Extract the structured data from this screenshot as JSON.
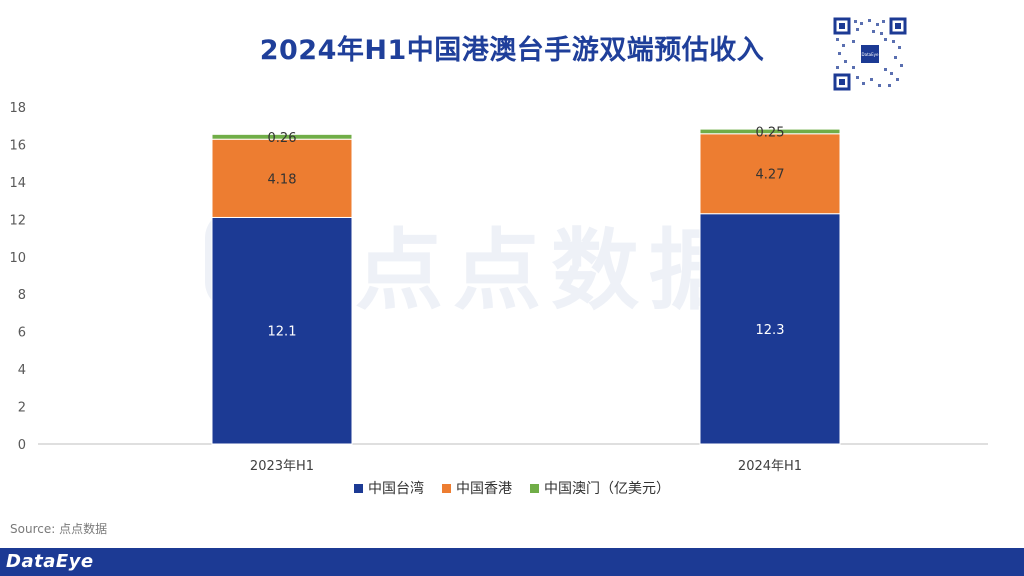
{
  "title": "2024年H1中国港澳台手游双端预估收入",
  "qr_icon_label": "DataEye",
  "watermark": "点点数据",
  "source": "Source: 点点数据",
  "brand": "DataEye",
  "colors": {
    "taiwan": "#1c3a94",
    "hongkong": "#ed7d31",
    "macau": "#70ad47",
    "title": "#1f3f9a",
    "footer": "#1c3a94"
  },
  "chart_data": {
    "type": "bar",
    "stacked": true,
    "categories": [
      "2023年H1",
      "2024年H1"
    ],
    "series": [
      {
        "name": "中国台湾",
        "values": [
          12.1,
          12.3
        ]
      },
      {
        "name": "中国香港",
        "values": [
          4.18,
          4.27
        ]
      },
      {
        "name": "中国澳门（亿美元）",
        "values": [
          0.26,
          0.25
        ]
      }
    ],
    "data_labels": [
      [
        "12.1",
        "12.3"
      ],
      [
        "4.18",
        "4.27"
      ],
      [
        "0.26",
        "0.25"
      ]
    ],
    "y_ticks": [
      "0",
      "2",
      "4",
      "6",
      "8",
      "10",
      "12",
      "14",
      "16",
      "18"
    ],
    "ylim": [
      0,
      18
    ],
    "legend_position": "bottom",
    "grid": false
  }
}
